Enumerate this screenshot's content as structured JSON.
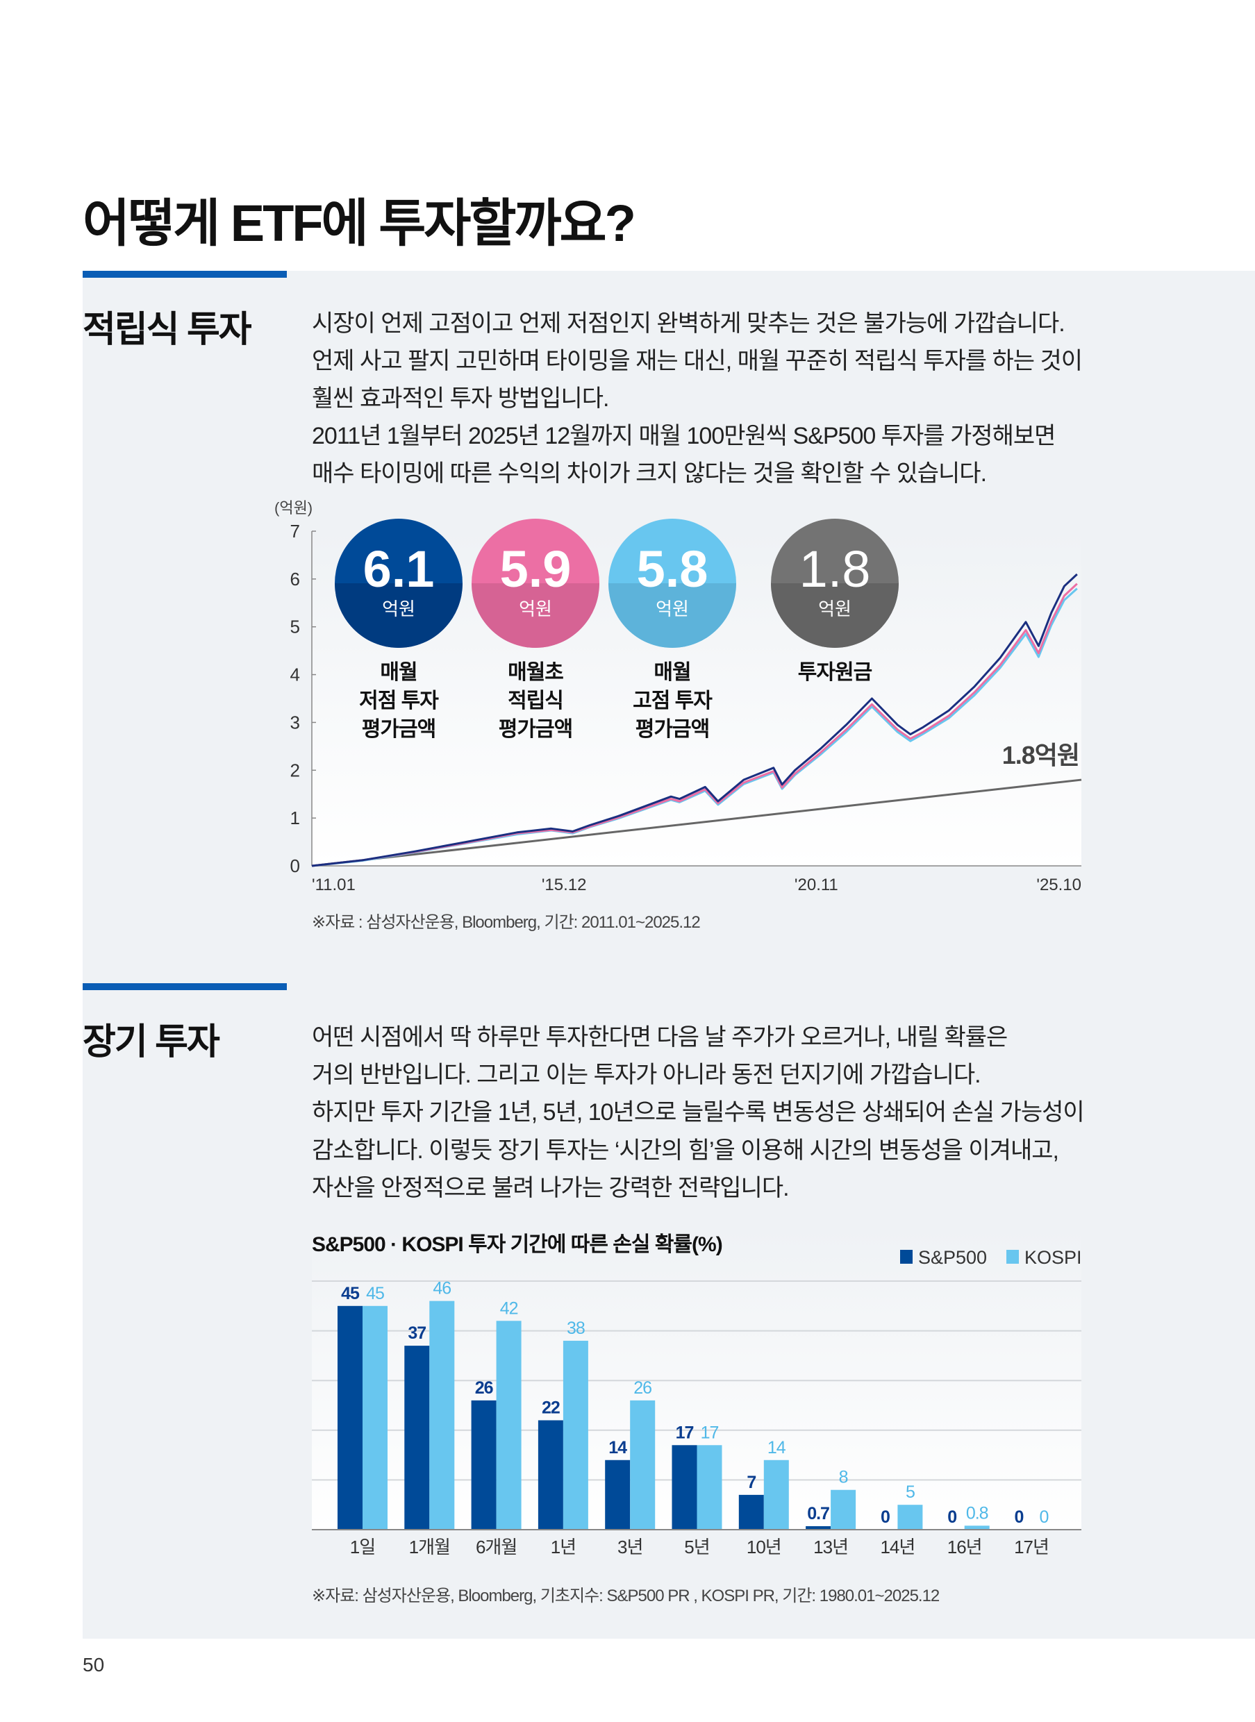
{
  "page_title": "어떻게 ETF에 투자할까요?",
  "page_number": "50",
  "section1": {
    "heading": "적립식 투자",
    "body": [
      "시장이 언제 고점이고 언제 저점인지 완벽하게 맞추는 것은 불가능에 가깝습니다.",
      "언제 사고 팔지 고민하며 타이밍을 재는 대신, 매월 꾸준히 적립식 투자를 하는 것이",
      "훨씬 효과적인 투자 방법입니다.",
      "2011년 1월부터 2025년 12월까지 매월 100만원씩 S&P500 투자를 가정해보면",
      "매수 타이밍에 따른 수익의 차이가 크지 않다는 것을 확인할 수 있습니다."
    ],
    "source": "※자료 : 삼성자산운용, Bloomberg, 기간: 2011.01~2025.12",
    "circles": [
      {
        "value": "6.1",
        "unit": "억원",
        "label": [
          "매월",
          "저점 투자",
          "평가금액"
        ],
        "color": "#004a98",
        "dark": "#003b80"
      },
      {
        "value": "5.9",
        "unit": "억원",
        "label": [
          "매월초",
          "적립식",
          "평가금액"
        ],
        "color": "#ec6fa4",
        "dark": "#d66394"
      },
      {
        "value": "5.8",
        "unit": "억원",
        "label": [
          "매월",
          "고점 투자",
          "평가금액"
        ],
        "color": "#68c6ef",
        "dark": "#5db3da"
      },
      {
        "value": "1.8",
        "unit": "억원",
        "label": [
          "투자원금"
        ],
        "color": "#737373",
        "dark": "#636363"
      }
    ]
  },
  "chart_data": [
    {
      "type": "line",
      "ylabel": "(억원)",
      "ylim": [
        0,
        7
      ],
      "yticks": [
        "0",
        "1",
        "2",
        "3",
        "4",
        "5",
        "6",
        "7"
      ],
      "xlim": [
        "2011-01",
        "2025-12"
      ],
      "xticks": [
        {
          "date": "2011-01",
          "label": "'11.01"
        },
        {
          "date": "2015-12",
          "label": "'15.12"
        },
        {
          "date": "2020-11",
          "label": "'20.11"
        },
        {
          "date": "2025-10",
          "label": "'25.10"
        }
      ],
      "annotation": "1.8억원",
      "x": [
        "2011-01",
        "2012-01",
        "2013-01",
        "2014-01",
        "2015-01",
        "2015-09",
        "2016-02",
        "2016-06",
        "2017-01",
        "2018-01",
        "2018-03",
        "2018-09",
        "2018-12",
        "2019-06",
        "2020-01",
        "2020-03",
        "2020-06",
        "2020-12",
        "2021-06",
        "2021-12",
        "2022-06",
        "2022-09",
        "2022-12",
        "2023-06",
        "2023-12",
        "2024-06",
        "2024-12",
        "2025-03",
        "2025-06",
        "2025-09",
        "2025-12"
      ],
      "series": [
        {
          "color": "#1a2f80",
          "values": [
            0,
            0.12,
            0.3,
            0.5,
            0.7,
            0.78,
            0.72,
            0.85,
            1.05,
            1.45,
            1.4,
            1.65,
            1.35,
            1.8,
            2.05,
            1.7,
            2.0,
            2.45,
            2.95,
            3.5,
            2.95,
            2.75,
            2.9,
            3.25,
            3.75,
            4.35,
            5.1,
            4.6,
            5.3,
            5.85,
            6.1
          ]
        },
        {
          "color": "#ec6fa4",
          "values": [
            0,
            0.12,
            0.29,
            0.48,
            0.68,
            0.75,
            0.7,
            0.82,
            1.02,
            1.4,
            1.35,
            1.6,
            1.31,
            1.74,
            1.98,
            1.64,
            1.93,
            2.37,
            2.85,
            3.38,
            2.85,
            2.66,
            2.8,
            3.14,
            3.63,
            4.2,
            4.93,
            4.45,
            5.12,
            5.65,
            5.9
          ]
        },
        {
          "color": "#68c6ef",
          "values": [
            0,
            0.11,
            0.28,
            0.47,
            0.66,
            0.74,
            0.68,
            0.81,
            1.0,
            1.38,
            1.33,
            1.57,
            1.28,
            1.71,
            1.95,
            1.61,
            1.9,
            2.33,
            2.8,
            3.33,
            2.8,
            2.61,
            2.76,
            3.09,
            3.57,
            4.14,
            4.85,
            4.37,
            5.04,
            5.56,
            5.8
          ]
        },
        {
          "color": "#666666",
          "values_start_end": [
            0,
            1.8
          ]
        }
      ]
    },
    {
      "type": "bar",
      "title": "S&P500 · KOSPI 투자 기간에 따른 손실 확률(%)",
      "categories": [
        "1일",
        "1개월",
        "6개월",
        "1년",
        "3년",
        "5년",
        "10년",
        "13년",
        "14년",
        "16년",
        "17년"
      ],
      "ylim": [
        0,
        50
      ],
      "grid": true,
      "legend": "top-right",
      "series": [
        {
          "name": "S&P500",
          "color": "#004a98",
          "values": [
            45,
            37,
            26,
            22,
            14,
            17,
            7,
            0.7,
            0,
            0,
            0
          ]
        },
        {
          "name": "KOSPI",
          "color": "#68c6ef",
          "values": [
            45,
            46,
            42,
            38,
            26,
            17,
            14,
            8,
            5,
            0.8,
            0
          ]
        }
      ]
    }
  ],
  "section2": {
    "heading": "장기 투자",
    "body": [
      "어떤 시점에서 딱 하루만 투자한다면 다음 날 주가가 오르거나, 내릴 확률은",
      "거의 반반입니다. 그리고 이는 투자가 아니라 동전 던지기에 가깝습니다.",
      "하지만 투자 기간을 1년, 5년, 10년으로 늘릴수록 변동성은 상쇄되어 손실 가능성이",
      "감소합니다. 이렇듯 장기 투자는 ‘시간의 힘’을 이용해 시간의 변동성을 이겨내고,",
      "자산을 안정적으로 불려 나가는 강력한 전략입니다."
    ],
    "source": "※자료: 삼성자산운용, Bloomberg, 기초지수: S&P500 PR , KOSPI PR, 기간: 1980.01~2025.12"
  }
}
